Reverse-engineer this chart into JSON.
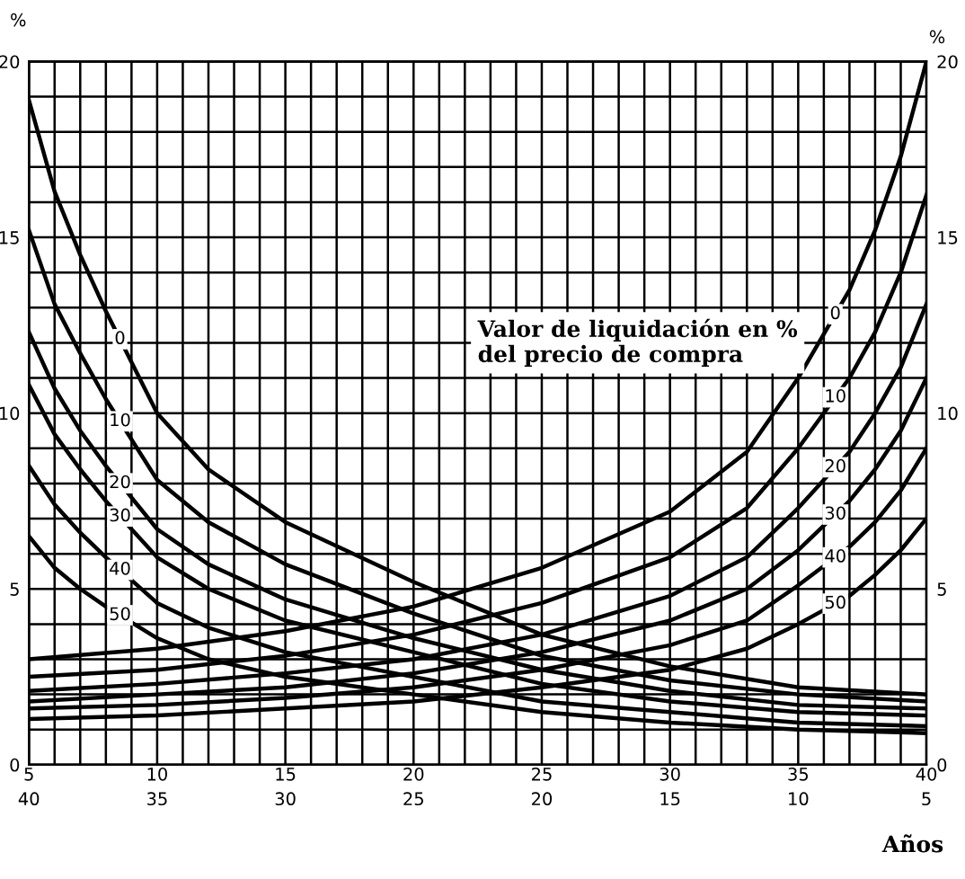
{
  "chart_data": {
    "type": "line",
    "xlabel": "Años",
    "ylabel": "%",
    "y2label": "%",
    "xlim": [
      5,
      40
    ],
    "ylim": [
      0,
      20
    ],
    "y2lim": [
      0,
      20
    ],
    "x2lim": [
      40,
      5
    ],
    "x2ticks": [
      40,
      35,
      30,
      25,
      20,
      15,
      10,
      5
    ],
    "xticks": [
      5,
      {
        "value": 6,
        "label": null
      },
      {
        "value": 7,
        "label": null
      },
      {
        "value": 8,
        "label": null
      },
      {
        "value": 9,
        "label": null
      },
      10,
      {
        "value": 11,
        "label": null
      },
      {
        "value": 12,
        "label": null
      },
      {
        "value": 13,
        "label": null
      },
      {
        "value": 14,
        "label": null
      },
      15,
      {
        "value": 16,
        "label": null
      },
      {
        "value": 17,
        "label": null
      },
      {
        "value": 18,
        "label": null
      },
      {
        "value": 19,
        "label": null
      },
      20,
      {
        "value": 21,
        "label": null
      },
      {
        "value": 22,
        "label": null
      },
      {
        "value": 23,
        "label": null
      },
      {
        "value": 24,
        "label": null
      },
      25,
      {
        "value": 26,
        "label": null
      },
      {
        "value": 27,
        "label": null
      },
      {
        "value": 28,
        "label": null
      },
      {
        "value": 29,
        "label": null
      },
      30,
      {
        "value": 31,
        "label": null
      },
      {
        "value": 32,
        "label": null
      },
      {
        "value": 33,
        "label": null
      },
      {
        "value": 34,
        "label": null
      },
      35,
      {
        "value": 36,
        "label": null
      },
      {
        "value": 37,
        "label": null
      },
      {
        "value": 38,
        "label": null
      },
      {
        "value": 39,
        "label": null
      },
      40
    ],
    "yticks": [
      0,
      {
        "value": 1,
        "label": null
      },
      {
        "value": 2,
        "label": null
      },
      {
        "value": 3,
        "label": null
      },
      {
        "value": 4,
        "label": null
      },
      5,
      {
        "value": 6,
        "label": null
      },
      {
        "value": 7,
        "label": null
      },
      {
        "value": 8,
        "label": null
      },
      {
        "value": 9,
        "label": null
      },
      10,
      {
        "value": 11,
        "label": null
      },
      {
        "value": 12,
        "label": null
      },
      {
        "value": 13,
        "label": null
      },
      {
        "value": 14,
        "label": null
      },
      15,
      {
        "value": 16,
        "label": null
      },
      {
        "value": 17,
        "label": null
      },
      {
        "value": 18,
        "label": null
      },
      {
        "value": 19,
        "label": null
      },
      20
    ],
    "y2ticks": [
      0,
      5,
      10,
      15,
      20
    ],
    "grid": true,
    "legend": false,
    "marker": "none",
    "line_style": "solid",
    "annotations": [
      "Valor de liquidación en %\ndel precio de compra"
    ],
    "series": [
      {
        "name": "0",
        "color": "#000000",
        "x": [
          5,
          6,
          7,
          8,
          10,
          12,
          15,
          20,
          25,
          30,
          35,
          40
        ],
        "values": [
          18.9,
          16.3,
          14.5,
          12.9,
          10.0,
          8.4,
          6.9,
          5.2,
          3.7,
          2.8,
          2.2,
          2.0
        ]
      },
      {
        "name": "10",
        "color": "#000000",
        "x": [
          5,
          6,
          7,
          8,
          10,
          12,
          15,
          20,
          25,
          30,
          35,
          40
        ],
        "values": [
          15.2,
          13.1,
          11.7,
          10.4,
          8.1,
          6.9,
          5.7,
          4.3,
          3.1,
          2.4,
          2.0,
          1.8
        ]
      },
      {
        "name": "20",
        "color": "#000000",
        "x": [
          5,
          6,
          7,
          8,
          10,
          12,
          15,
          20,
          25,
          30,
          35,
          40
        ],
        "values": [
          12.3,
          10.7,
          9.5,
          8.5,
          6.7,
          5.7,
          4.7,
          3.6,
          2.7,
          2.1,
          1.7,
          1.6
        ]
      },
      {
        "name": "30",
        "color": "#000000",
        "x": [
          5,
          6,
          7,
          8,
          10,
          12,
          15,
          20,
          25,
          30,
          35,
          40
        ],
        "values": [
          10.8,
          9.4,
          8.4,
          7.5,
          5.9,
          5.0,
          4.1,
          3.2,
          2.3,
          1.8,
          1.5,
          1.4
        ]
      },
      {
        "name": "40",
        "color": "#000000",
        "x": [
          5,
          6,
          7,
          8,
          10,
          12,
          15,
          20,
          25,
          30,
          35,
          40
        ],
        "values": [
          8.5,
          7.4,
          6.6,
          5.9,
          4.6,
          3.9,
          3.2,
          2.5,
          1.8,
          1.5,
          1.2,
          1.1
        ]
      },
      {
        "name": "50",
        "color": "#000000",
        "x": [
          5,
          6,
          7,
          8,
          10,
          12,
          15,
          20,
          25,
          30,
          35,
          40
        ],
        "values": [
          6.5,
          5.6,
          5.0,
          4.5,
          3.6,
          3.0,
          2.5,
          2.0,
          1.5,
          1.2,
          1.0,
          0.9
        ]
      },
      {
        "name": "0",
        "color": "#000000",
        "x": [
          40,
          39,
          38,
          37,
          35,
          33,
          30,
          25,
          20,
          15,
          10,
          5
        ],
        "values": [
          20.0,
          17.3,
          15.2,
          13.5,
          11.0,
          8.9,
          7.2,
          5.6,
          4.5,
          3.8,
          3.3,
          3.0
        ]
      },
      {
        "name": "10",
        "color": "#000000",
        "x": [
          40,
          39,
          38,
          37,
          35,
          33,
          30,
          25,
          20,
          15,
          10,
          5
        ],
        "values": [
          16.2,
          14.0,
          12.3,
          11.0,
          9.0,
          7.3,
          5.9,
          4.6,
          3.7,
          3.1,
          2.7,
          2.5
        ]
      },
      {
        "name": "20",
        "color": "#000000",
        "x": [
          40,
          39,
          38,
          37,
          35,
          33,
          30,
          25,
          20,
          15,
          10,
          5
        ],
        "values": [
          13.1,
          11.3,
          10.0,
          8.9,
          7.3,
          5.9,
          4.8,
          3.7,
          3.0,
          2.6,
          2.3,
          2.1
        ]
      },
      {
        "name": "30",
        "color": "#000000",
        "x": [
          40,
          39,
          38,
          37,
          35,
          33,
          30,
          25,
          20,
          15,
          10,
          5
        ],
        "values": [
          11.0,
          9.5,
          8.4,
          7.5,
          6.1,
          5.0,
          4.1,
          3.2,
          2.6,
          2.2,
          2.0,
          1.8
        ]
      },
      {
        "name": "40",
        "color": "#000000",
        "x": [
          40,
          39,
          38,
          37,
          35,
          33,
          30,
          25,
          20,
          15,
          10,
          5
        ],
        "values": [
          9.0,
          7.8,
          6.9,
          6.2,
          5.1,
          4.1,
          3.4,
          2.7,
          2.2,
          1.9,
          1.7,
          1.6
        ]
      },
      {
        "name": "50",
        "color": "#000000",
        "x": [
          40,
          39,
          38,
          37,
          35,
          33,
          30,
          25,
          20,
          15,
          10,
          5
        ],
        "values": [
          7.0,
          6.1,
          5.4,
          4.8,
          4.0,
          3.3,
          2.7,
          2.2,
          1.8,
          1.6,
          1.4,
          1.3
        ]
      }
    ]
  }
}
